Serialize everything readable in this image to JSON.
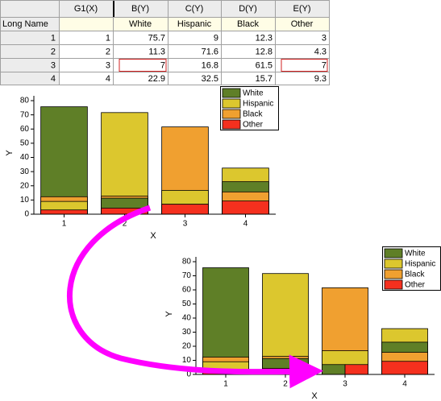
{
  "table": {
    "columns": [
      "G1(X)",
      "B(Y)",
      "C(Y)",
      "D(Y)",
      "E(Y)"
    ],
    "long_name_header": "Long Name",
    "long_names": [
      null,
      "White",
      "Hispanic",
      "Black",
      "Other"
    ],
    "row_labels": [
      1,
      2,
      3,
      4
    ],
    "rows": [
      [
        1,
        75.7,
        9,
        12.3,
        3
      ],
      [
        2,
        11.3,
        71.6,
        12.8,
        4.3
      ],
      [
        3,
        7,
        16.8,
        61.5,
        7
      ],
      [
        4,
        22.9,
        32.5,
        15.7,
        9.3
      ]
    ]
  },
  "chart_data": [
    {
      "type": "bar",
      "categories": [
        "1",
        "2",
        "3",
        "4"
      ],
      "xlabel": "X",
      "ylabel": "Y",
      "ylim": [
        0,
        80
      ],
      "yticks": [
        0,
        10,
        20,
        30,
        40,
        50,
        60,
        70,
        80
      ],
      "legend": "top-right",
      "series": [
        {
          "name": "White",
          "color": "#5f7f27",
          "values": [
            75.7,
            11.3,
            7,
            22.9
          ]
        },
        {
          "name": "Hispanic",
          "color": "#dcc72e",
          "values": [
            9,
            71.6,
            16.8,
            32.5
          ]
        },
        {
          "name": "Black",
          "color": "#f0a030",
          "values": [
            12.3,
            12.8,
            61.5,
            15.7
          ]
        },
        {
          "name": "Other",
          "color": "#f5301e",
          "values": [
            3,
            4.3,
            7,
            9.3
          ]
        }
      ]
    },
    {
      "type": "bar",
      "categories": [
        "1",
        "2",
        "3",
        "4"
      ],
      "xlabel": "X",
      "ylabel": "Y",
      "ylim": [
        0,
        80
      ],
      "yticks": [
        0,
        10,
        20,
        30,
        40,
        50,
        60,
        70,
        80
      ],
      "legend": "top-right",
      "series": [
        {
          "name": "White",
          "color": "#5f7f27",
          "values": [
            75.7,
            11.3,
            7,
            22.9
          ]
        },
        {
          "name": "Hispanic",
          "color": "#dcc72e",
          "values": [
            9,
            71.6,
            16.8,
            32.5
          ]
        },
        {
          "name": "Black",
          "color": "#f0a030",
          "values": [
            12.3,
            12.8,
            61.5,
            15.7
          ]
        },
        {
          "name": "Other",
          "color": "#f5301e",
          "values": [
            3,
            4.3,
            7,
            9.3
          ]
        }
      ]
    }
  ]
}
